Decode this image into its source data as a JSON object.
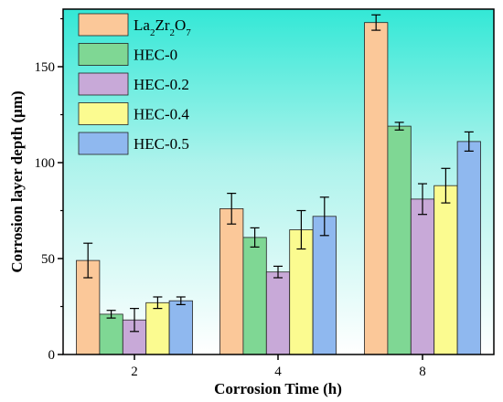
{
  "chart_data": {
    "type": "bar",
    "categories": [
      "2",
      "4",
      "8"
    ],
    "xlabel": "Corrosion Time (h)",
    "ylabel": "Corrosion layer depth (μm)",
    "ylim": [
      0,
      180
    ],
    "yticks": [
      0,
      50,
      100,
      150
    ],
    "grid": false,
    "legend_position": "top-left",
    "background": "gradient-cyan-to-white",
    "series": [
      {
        "name": "La2Zr2O7",
        "legend_parts": [
          [
            "La",
            ""
          ],
          [
            "2",
            "sub"
          ],
          [
            "Zr",
            ""
          ],
          [
            "2",
            "sub"
          ],
          [
            "O",
            ""
          ],
          [
            "7",
            "sub"
          ]
        ],
        "color": "#fbc899",
        "values": [
          49,
          76,
          173
        ],
        "errors": [
          9,
          8,
          4
        ]
      },
      {
        "name": "HEC-0",
        "color": "#7fd794",
        "values": [
          21,
          61,
          119
        ],
        "errors": [
          2,
          5,
          2
        ]
      },
      {
        "name": "HEC-0.2",
        "color": "#c8a9d8",
        "values": [
          18,
          43,
          81
        ],
        "errors": [
          6,
          3,
          8
        ]
      },
      {
        "name": "HEC-0.4",
        "color": "#fbfb90",
        "values": [
          27,
          65,
          88
        ],
        "errors": [
          3,
          10,
          9
        ]
      },
      {
        "name": "HEC-0.5",
        "color": "#8fb8ef",
        "values": [
          28,
          72,
          111
        ],
        "errors": [
          2,
          10,
          5
        ]
      }
    ]
  }
}
